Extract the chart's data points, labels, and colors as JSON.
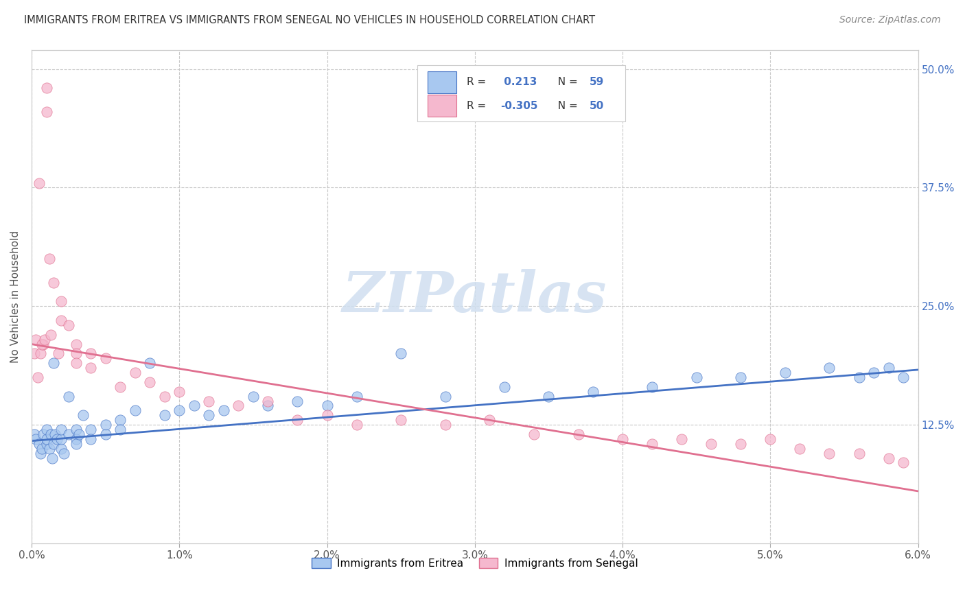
{
  "title": "IMMIGRANTS FROM ERITREA VS IMMIGRANTS FROM SENEGAL NO VEHICLES IN HOUSEHOLD CORRELATION CHART",
  "source": "Source: ZipAtlas.com",
  "ylabel": "No Vehicles in Household",
  "yticks_right": [
    "50.0%",
    "37.5%",
    "25.0%",
    "12.5%"
  ],
  "yticks_right_vals": [
    0.5,
    0.375,
    0.25,
    0.125
  ],
  "legend_entries": [
    {
      "label": "Immigrants from Eritrea",
      "color": "#a8c8f0",
      "border": "#4472c4",
      "R": 0.213,
      "N": 59
    },
    {
      "label": "Immigrants from Senegal",
      "color": "#f5b8ce",
      "border": "#e07090",
      "R": -0.305,
      "N": 50
    }
  ],
  "xmin": 0.0,
  "xmax": 0.06,
  "ymin": 0.0,
  "ymax": 0.52,
  "blue_line_x": [
    0.0,
    0.06
  ],
  "blue_line_y": [
    0.108,
    0.183
  ],
  "pink_line_x": [
    0.0,
    0.06
  ],
  "pink_line_y": [
    0.21,
    0.055
  ],
  "blue_line_color": "#4472c4",
  "pink_line_color": "#e07090",
  "scatter_blue_color": "#a8c8f0",
  "scatter_pink_color": "#f5b8ce",
  "background_color": "#ffffff",
  "grid_color": "#c8c8c8",
  "watermark_color": "#d0dff0",
  "blue_x": [
    0.0002,
    0.0003,
    0.0005,
    0.0006,
    0.0007,
    0.0008,
    0.001,
    0.001,
    0.001,
    0.0012,
    0.0013,
    0.0014,
    0.0015,
    0.0016,
    0.0017,
    0.002,
    0.002,
    0.002,
    0.0022,
    0.0025,
    0.003,
    0.003,
    0.003,
    0.0032,
    0.0035,
    0.004,
    0.004,
    0.005,
    0.005,
    0.006,
    0.006,
    0.007,
    0.008,
    0.009,
    0.01,
    0.011,
    0.012,
    0.013,
    0.015,
    0.016,
    0.018,
    0.02,
    0.022,
    0.025,
    0.028,
    0.032,
    0.035,
    0.038,
    0.042,
    0.045,
    0.048,
    0.051,
    0.054,
    0.056,
    0.057,
    0.058,
    0.059,
    0.0015,
    0.0025
  ],
  "blue_y": [
    0.115,
    0.11,
    0.105,
    0.095,
    0.1,
    0.115,
    0.105,
    0.11,
    0.12,
    0.1,
    0.115,
    0.09,
    0.105,
    0.115,
    0.11,
    0.1,
    0.11,
    0.12,
    0.095,
    0.115,
    0.12,
    0.11,
    0.105,
    0.115,
    0.135,
    0.12,
    0.11,
    0.125,
    0.115,
    0.13,
    0.12,
    0.14,
    0.19,
    0.135,
    0.14,
    0.145,
    0.135,
    0.14,
    0.155,
    0.145,
    0.15,
    0.145,
    0.155,
    0.2,
    0.155,
    0.165,
    0.155,
    0.16,
    0.165,
    0.175,
    0.175,
    0.18,
    0.185,
    0.175,
    0.18,
    0.185,
    0.175,
    0.19,
    0.155
  ],
  "pink_x": [
    0.0002,
    0.0004,
    0.0005,
    0.0006,
    0.0008,
    0.001,
    0.001,
    0.0012,
    0.0015,
    0.002,
    0.002,
    0.0025,
    0.003,
    0.003,
    0.004,
    0.004,
    0.005,
    0.006,
    0.007,
    0.008,
    0.009,
    0.01,
    0.012,
    0.014,
    0.016,
    0.018,
    0.02,
    0.022,
    0.025,
    0.028,
    0.031,
    0.034,
    0.037,
    0.04,
    0.042,
    0.044,
    0.046,
    0.048,
    0.05,
    0.052,
    0.054,
    0.056,
    0.058,
    0.059,
    0.0003,
    0.0007,
    0.0009,
    0.0013,
    0.0018,
    0.003
  ],
  "pink_y": [
    0.2,
    0.175,
    0.38,
    0.2,
    0.21,
    0.48,
    0.455,
    0.3,
    0.275,
    0.255,
    0.235,
    0.23,
    0.21,
    0.2,
    0.2,
    0.185,
    0.195,
    0.165,
    0.18,
    0.17,
    0.155,
    0.16,
    0.15,
    0.145,
    0.15,
    0.13,
    0.135,
    0.125,
    0.13,
    0.125,
    0.13,
    0.115,
    0.115,
    0.11,
    0.105,
    0.11,
    0.105,
    0.105,
    0.11,
    0.1,
    0.095,
    0.095,
    0.09,
    0.085,
    0.215,
    0.21,
    0.215,
    0.22,
    0.2,
    0.19
  ]
}
